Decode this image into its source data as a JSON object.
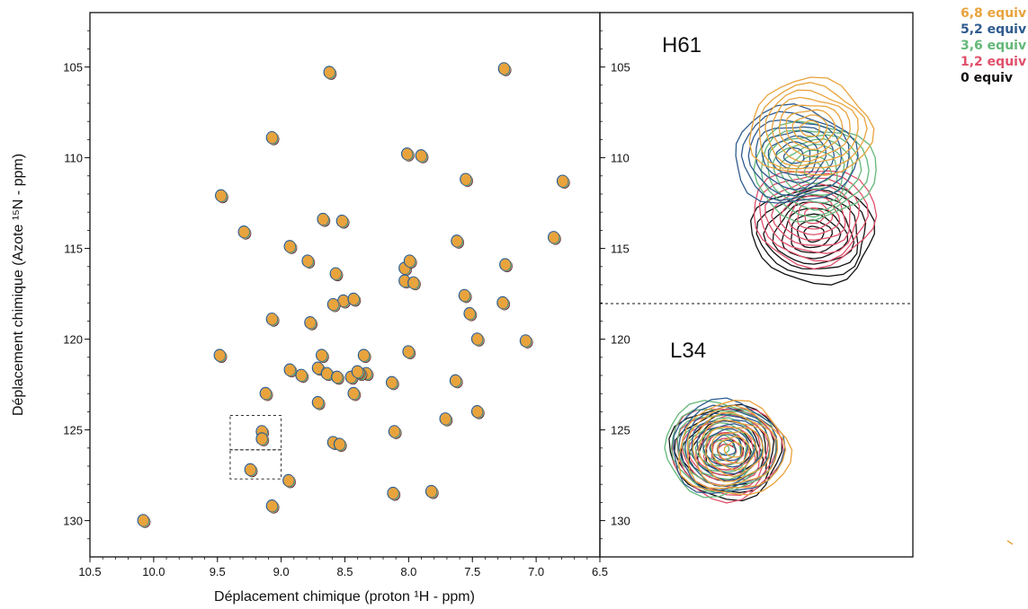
{
  "chart_data": [
    {
      "type": "scatter",
      "title": "",
      "xlabel": "Déplacement chimique (proton ¹H - ppm)",
      "ylabel": "Déplacement chimique (Azote ¹⁵N - ppm)",
      "xlim": [
        10.5,
        6.5
      ],
      "ylim": [
        132,
        102
      ],
      "x_reversed": true,
      "y_reversed": true,
      "grid": false,
      "xticks": [
        "10.5",
        "10.0",
        "9.5",
        "9.0",
        "8.5",
        "8.0",
        "7.5",
        "7.0",
        "6.5"
      ],
      "yticks": [
        "105",
        "110",
        "115",
        "120",
        "125",
        "130"
      ],
      "peaks": [
        [
          8.62,
          105.3
        ],
        [
          7.25,
          105.1
        ],
        [
          9.07,
          108.9
        ],
        [
          8.01,
          109.8
        ],
        [
          7.9,
          109.9
        ],
        [
          9.47,
          112.1
        ],
        [
          7.55,
          111.2
        ],
        [
          6.79,
          111.3
        ],
        [
          6.86,
          114.4
        ],
        [
          9.29,
          114.1
        ],
        [
          8.93,
          114.9
        ],
        [
          8.67,
          113.4
        ],
        [
          8.52,
          113.5
        ],
        [
          8.79,
          115.7
        ],
        [
          8.57,
          116.4
        ],
        [
          8.03,
          116.1
        ],
        [
          7.99,
          115.7
        ],
        [
          7.62,
          114.6
        ],
        [
          7.24,
          115.9
        ],
        [
          8.51,
          117.9
        ],
        [
          8.43,
          117.8
        ],
        [
          8.59,
          118.1
        ],
        [
          8.03,
          116.8
        ],
        [
          7.96,
          116.9
        ],
        [
          7.56,
          117.6
        ],
        [
          7.26,
          118.0
        ],
        [
          7.52,
          118.6
        ],
        [
          9.07,
          118.9
        ],
        [
          8.77,
          119.1
        ],
        [
          7.46,
          120.0
        ],
        [
          7.08,
          120.1
        ],
        [
          9.48,
          120.9
        ],
        [
          8.68,
          120.9
        ],
        [
          8.35,
          120.9
        ],
        [
          8.0,
          120.7
        ],
        [
          8.93,
          121.7
        ],
        [
          8.84,
          122.0
        ],
        [
          8.71,
          121.6
        ],
        [
          8.64,
          121.9
        ],
        [
          8.56,
          122.1
        ],
        [
          8.45,
          122.1
        ],
        [
          8.33,
          121.9
        ],
        [
          8.38,
          121.9
        ],
        [
          8.4,
          121.8
        ],
        [
          9.12,
          123.0
        ],
        [
          8.71,
          123.5
        ],
        [
          8.43,
          123.0
        ],
        [
          8.13,
          122.4
        ],
        [
          7.63,
          122.3
        ],
        [
          7.71,
          124.4
        ],
        [
          7.46,
          124.0
        ],
        [
          9.15,
          125.1
        ],
        [
          9.15,
          125.5
        ],
        [
          8.59,
          125.7
        ],
        [
          8.54,
          125.8
        ],
        [
          8.11,
          125.1
        ],
        [
          9.24,
          127.2
        ],
        [
          8.94,
          127.8
        ],
        [
          8.12,
          128.5
        ],
        [
          7.82,
          128.4
        ],
        [
          9.07,
          129.2
        ],
        [
          10.08,
          130.0
        ]
      ],
      "boxes": [
        {
          "x": [
            9.4,
            9.0
          ],
          "y": [
            124.2,
            126.1
          ]
        },
        {
          "x": [
            9.4,
            9.0
          ],
          "y": [
            126.1,
            127.7
          ]
        }
      ]
    },
    {
      "type": "line",
      "title": "",
      "ylim": [
        132,
        102
      ],
      "yticks": [
        "105",
        "110",
        "115",
        "120",
        "125",
        "130"
      ],
      "divider_y": 118,
      "panels": [
        {
          "label": "H61",
          "peak_shift": [
            [
              0,
              114.2
            ],
            [
              1.2,
              113.2
            ],
            [
              3.6,
              110.7
            ],
            [
              5.2,
              109.9
            ],
            [
              6.8,
              108.4
            ]
          ]
        },
        {
          "label": "L34",
          "peak_shift": [
            [
              0,
              126.2
            ],
            [
              1.2,
              126.2
            ],
            [
              3.6,
              126.0
            ],
            [
              5.2,
              126.0
            ],
            [
              6.8,
              126.1
            ]
          ]
        }
      ]
    }
  ],
  "legend": [
    {
      "label": "6,8 equiv",
      "color": "#E8A33C"
    },
    {
      "label": "5,2 equiv",
      "color": "#2E5B8F"
    },
    {
      "label": "3,6 equiv",
      "color": "#63B878"
    },
    {
      "label": "1,2 equiv",
      "color": "#E0506A"
    },
    {
      "label": "0 equiv",
      "color": "#111111"
    }
  ]
}
